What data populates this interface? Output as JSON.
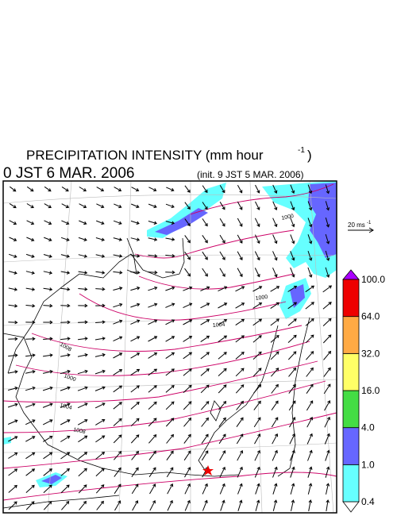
{
  "header": {
    "title": {
      "text": "PRECIPITATION INTENSITY (mm hour",
      "sup": "-1",
      "close": ")"
    },
    "valid_time": "0 JST 6 MAR. 2006",
    "init": "(init. 9 JST 5 MAR. 2006)"
  },
  "legend": {
    "wind": {
      "text": "20 ms",
      "sup": "-1"
    }
  },
  "colorbar": {
    "levels": [
      "0.4",
      "1.0",
      "4.0",
      "16.0",
      "32.0",
      "64.0",
      "100.0"
    ],
    "colors": [
      "#66ffff",
      "#6666ff",
      "#44dd44",
      "#ffff66",
      "#ffaa44",
      "#ee0000"
    ],
    "under_color": "#ffffff",
    "over_color": "#aa00ff"
  },
  "isobar_labels": [
    "1000",
    "1000",
    "1004",
    "1008",
    "1000",
    "1004",
    "1008"
  ]
}
